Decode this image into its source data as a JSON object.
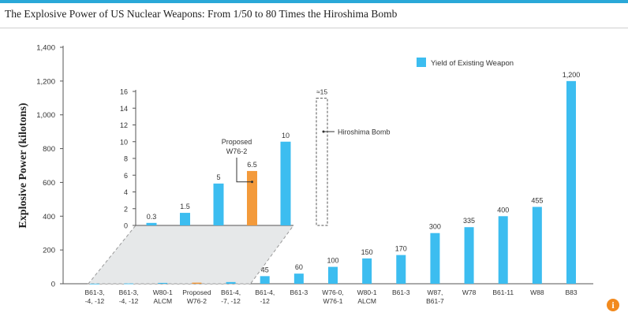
{
  "title": "The Explosive Power of US Nuclear Weapons: From 1/50 to 80 Times the Hiroshima Bomb",
  "chart_data": {
    "type": "bar",
    "title": "The Explosive Power of US Nuclear Weapons: From 1/50 to 80 Times the Hiroshima Bomb",
    "ylabel": "Explosive Power (kilotons)",
    "xlabel": "",
    "ylim": [
      0,
      1400
    ],
    "yticks": [
      "0",
      "200",
      "400",
      "600",
      "800",
      "1,000",
      "1,200",
      "1,400"
    ],
    "legend": {
      "label": "Yield of Existing Weapon",
      "position": "top-right",
      "color": "#3cbdf0"
    },
    "bars": [
      {
        "label": "B61-3, -4, -12",
        "value": 0.3,
        "display": "",
        "type": "existing"
      },
      {
        "label": "B61-3, -4, -12",
        "value": 1.5,
        "display": "",
        "type": "existing"
      },
      {
        "label": "W80-1 ALCM",
        "value": 5,
        "display": "",
        "type": "existing"
      },
      {
        "label": "Proposed W76-2",
        "value": 6.5,
        "display": "",
        "type": "proposed"
      },
      {
        "label": "B61-4, -7, -12",
        "value": 10,
        "display": "",
        "type": "existing"
      },
      {
        "label": "B61-4, -12",
        "value": 45,
        "display": "45",
        "type": "existing"
      },
      {
        "label": "B61-3",
        "value": 60,
        "display": "60",
        "type": "existing"
      },
      {
        "label": "W76-0, W76-1",
        "value": 100,
        "display": "100",
        "type": "existing"
      },
      {
        "label": "W80-1 ALCM",
        "value": 150,
        "display": "150",
        "type": "existing"
      },
      {
        "label": "B61-3",
        "value": 170,
        "display": "170",
        "type": "existing"
      },
      {
        "label": "W87, B61-7",
        "value": 300,
        "display": "300",
        "type": "existing"
      },
      {
        "label": "W78",
        "value": 335,
        "display": "335",
        "type": "existing"
      },
      {
        "label": "B61-11",
        "value": 400,
        "display": "400",
        "type": "existing"
      },
      {
        "label": "W88",
        "value": 455,
        "display": "455",
        "type": "existing"
      },
      {
        "label": "B83",
        "value": 1200,
        "display": "1,200",
        "type": "existing"
      }
    ],
    "inset": {
      "ylim": [
        0,
        16
      ],
      "yticks": [
        "0",
        "2",
        "4",
        "6",
        "8",
        "10",
        "12",
        "14",
        "16"
      ],
      "bars": [
        {
          "value": 0.3,
          "display": "0.3",
          "type": "existing"
        },
        {
          "value": 1.5,
          "display": "1.5",
          "type": "existing"
        },
        {
          "value": 5,
          "display": "5",
          "type": "existing"
        },
        {
          "value": 6.5,
          "display": "6.5",
          "type": "proposed"
        },
        {
          "value": 10,
          "display": "10",
          "type": "existing"
        }
      ],
      "hiroshima": {
        "value": 15,
        "display": "≈15",
        "label": "Hiroshima Bomb"
      },
      "proposed_annotation": "Proposed W76-2"
    },
    "colors": {
      "existing": "#3cbdf0",
      "proposed": "#f39a3b"
    }
  },
  "info_label": "i"
}
